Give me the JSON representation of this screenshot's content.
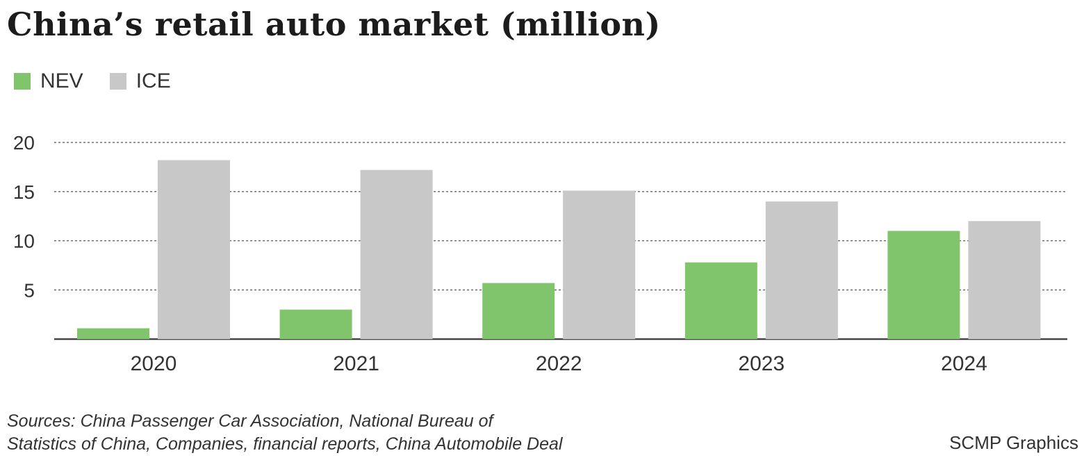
{
  "title": "China’s retail auto market (million)",
  "colors": {
    "nev": "#80c56b",
    "ice": "#c8c8c8",
    "gridline": "#555555",
    "axis": "#444444"
  },
  "legend": [
    {
      "label": "NEV",
      "color": "#80c56b"
    },
    {
      "label": "ICE",
      "color": "#c8c8c8"
    }
  ],
  "chart_data": {
    "type": "bar",
    "categories": [
      "2020",
      "2021",
      "2022",
      "2023",
      "2024"
    ],
    "series": [
      {
        "name": "NEV",
        "values": [
          1.1,
          3.0,
          5.7,
          7.8,
          11.0
        ]
      },
      {
        "name": "ICE",
        "values": [
          18.2,
          17.2,
          15.1,
          14.0,
          12.0
        ]
      }
    ],
    "yticks": [
      5,
      10,
      15,
      20
    ],
    "ylim": [
      0,
      20
    ],
    "grid": true
  },
  "footer": {
    "sources_line1": "Sources: China Passenger Car Association, National Bureau of",
    "sources_line2": "Statistics of China, Companies, financial reports, China Automobile Deal",
    "credit": "SCMP Graphics"
  }
}
